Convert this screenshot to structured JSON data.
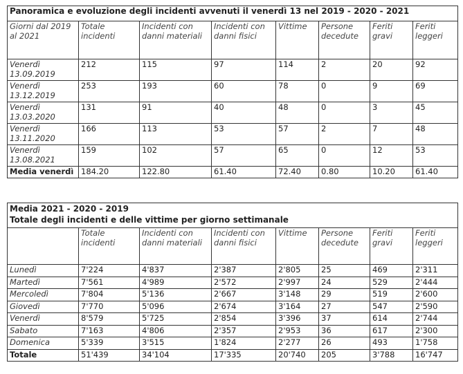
{
  "table1": {
    "title": "Panoramica e evoluzione degli incidenti avvenuti il venerdì 13 nel 2019 - 2020 - 2021",
    "headers": [
      "Giorni dal 2019 al 2021",
      "Totale incidenti",
      "Incidenti con danni materiali",
      "Incidenti con danni fisici",
      "Vittime",
      "Persone decedute",
      "Feriti gravi",
      "Feriti leggeri"
    ],
    "rows": [
      [
        "Venerdì 13.09.2019",
        "212",
        "115",
        "97",
        "114",
        "2",
        "20",
        "92"
      ],
      [
        "Venerdì 13.12.2019",
        "253",
        "193",
        "60",
        "78",
        "0",
        "9",
        "69"
      ],
      [
        "Venerdì 13.03.2020",
        "131",
        "91",
        "40",
        "48",
        "0",
        "3",
        "45"
      ],
      [
        "Venerdì 13.11.2020",
        "166",
        "113",
        "53",
        "57",
        "2",
        "7",
        "48"
      ],
      [
        "Venerdì 13.08.2021",
        "159",
        "102",
        "57",
        "65",
        "0",
        "12",
        "53"
      ]
    ],
    "total": [
      "Media venerdì",
      "184.20",
      "122.80",
      "61.40",
      "72.40",
      "0.80",
      "10.20",
      "61.40"
    ]
  },
  "table2": {
    "title_line1": "Media 2021 - 2020 - 2019",
    "title_line2": "Totale degli incidenti e delle vittime per giorno settimanale",
    "headers": [
      "",
      "Totale incidenti",
      "Incidenti con danni materiali",
      "Incidenti con danni fisici",
      "Vittime",
      "Persone decedute",
      "Feriti gravi",
      "Feriti leggeri"
    ],
    "rows": [
      [
        "Lunedì",
        "7'224",
        "4'837",
        "2'387",
        "2'805",
        "25",
        "469",
        "2'311"
      ],
      [
        "Martedì",
        "7'561",
        "4'989",
        "2'572",
        "2'997",
        "24",
        "529",
        "2'444"
      ],
      [
        "Mercoledì",
        "7'804",
        "5'136",
        "2'667",
        "3'148",
        "29",
        "519",
        "2'600"
      ],
      [
        "Giovedì",
        "7'770",
        "5'096",
        "2'674",
        "3'164",
        "27",
        "547",
        "2'590"
      ],
      [
        "Venerdì",
        "8'579",
        "5'725",
        "2'854",
        "3'396",
        "37",
        "614",
        "2'744"
      ],
      [
        "Sabato",
        "7'163",
        "4'806",
        "2'357",
        "2'953",
        "36",
        "617",
        "2'300"
      ],
      [
        "Domenica",
        "5'339",
        "3'515",
        "1'824",
        "2'277",
        "26",
        "493",
        "1'758"
      ]
    ],
    "total": [
      "Totale",
      "51'439",
      "34'104",
      "17'335",
      "20'740",
      "205",
      "3'788",
      "16'747"
    ]
  }
}
